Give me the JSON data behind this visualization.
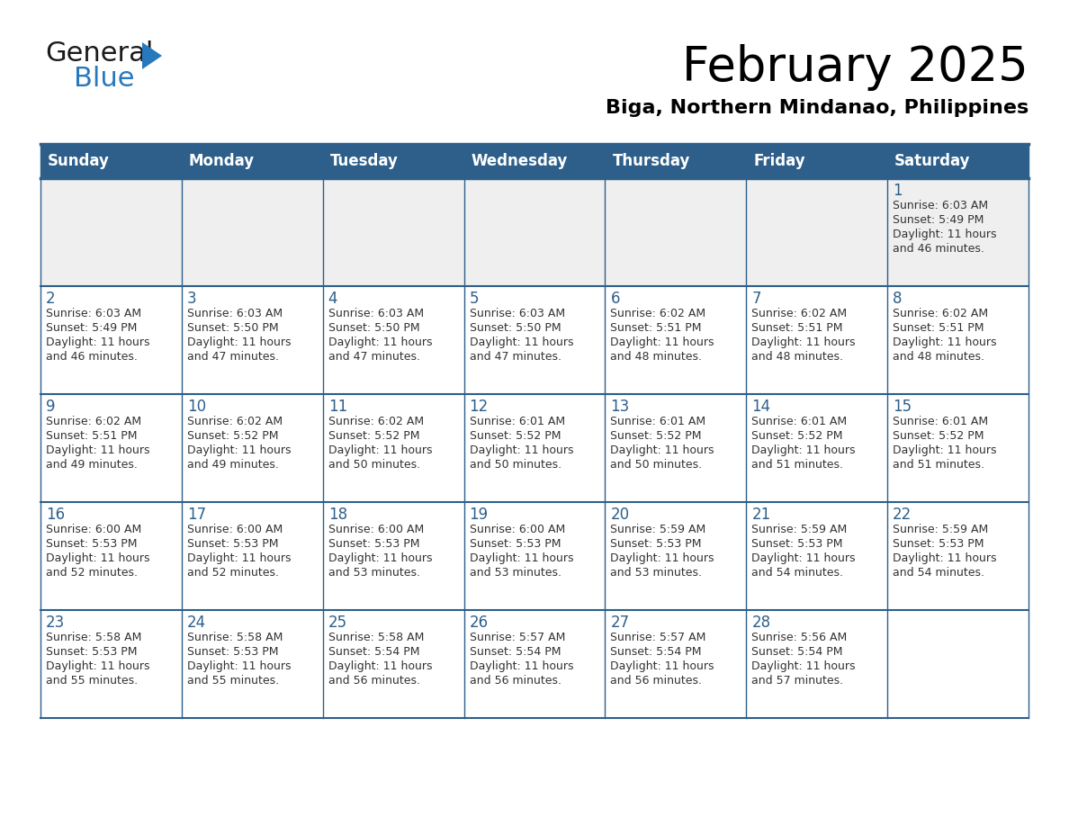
{
  "title": "February 2025",
  "subtitle": "Biga, Northern Mindanao, Philippines",
  "header_bg": "#2D5F8A",
  "header_text_color": "#FFFFFF",
  "day_headers": [
    "Sunday",
    "Monday",
    "Tuesday",
    "Wednesday",
    "Thursday",
    "Friday",
    "Saturday"
  ],
  "row0_bg": "#EFEFEF",
  "grid_line_color": "#2D5F8A",
  "date_color": "#2D5F8A",
  "text_color": "#333333",
  "logo_general_color": "#1a1a1a",
  "logo_blue_color": "#2878BE",
  "calendar": [
    [
      null,
      null,
      null,
      null,
      null,
      null,
      1
    ],
    [
      2,
      3,
      4,
      5,
      6,
      7,
      8
    ],
    [
      9,
      10,
      11,
      12,
      13,
      14,
      15
    ],
    [
      16,
      17,
      18,
      19,
      20,
      21,
      22
    ],
    [
      23,
      24,
      25,
      26,
      27,
      28,
      null
    ]
  ],
  "cell_data": {
    "1": {
      "sunrise": "6:03 AM",
      "sunset": "5:49 PM",
      "daylight": "11 hours",
      "daylight2": "and 46 minutes."
    },
    "2": {
      "sunrise": "6:03 AM",
      "sunset": "5:49 PM",
      "daylight": "11 hours",
      "daylight2": "and 46 minutes."
    },
    "3": {
      "sunrise": "6:03 AM",
      "sunset": "5:50 PM",
      "daylight": "11 hours",
      "daylight2": "and 47 minutes."
    },
    "4": {
      "sunrise": "6:03 AM",
      "sunset": "5:50 PM",
      "daylight": "11 hours",
      "daylight2": "and 47 minutes."
    },
    "5": {
      "sunrise": "6:03 AM",
      "sunset": "5:50 PM",
      "daylight": "11 hours",
      "daylight2": "and 47 minutes."
    },
    "6": {
      "sunrise": "6:02 AM",
      "sunset": "5:51 PM",
      "daylight": "11 hours",
      "daylight2": "and 48 minutes."
    },
    "7": {
      "sunrise": "6:02 AM",
      "sunset": "5:51 PM",
      "daylight": "11 hours",
      "daylight2": "and 48 minutes."
    },
    "8": {
      "sunrise": "6:02 AM",
      "sunset": "5:51 PM",
      "daylight": "11 hours",
      "daylight2": "and 48 minutes."
    },
    "9": {
      "sunrise": "6:02 AM",
      "sunset": "5:51 PM",
      "daylight": "11 hours",
      "daylight2": "and 49 minutes."
    },
    "10": {
      "sunrise": "6:02 AM",
      "sunset": "5:52 PM",
      "daylight": "11 hours",
      "daylight2": "and 49 minutes."
    },
    "11": {
      "sunrise": "6:02 AM",
      "sunset": "5:52 PM",
      "daylight": "11 hours",
      "daylight2": "and 50 minutes."
    },
    "12": {
      "sunrise": "6:01 AM",
      "sunset": "5:52 PM",
      "daylight": "11 hours",
      "daylight2": "and 50 minutes."
    },
    "13": {
      "sunrise": "6:01 AM",
      "sunset": "5:52 PM",
      "daylight": "11 hours",
      "daylight2": "and 50 minutes."
    },
    "14": {
      "sunrise": "6:01 AM",
      "sunset": "5:52 PM",
      "daylight": "11 hours",
      "daylight2": "and 51 minutes."
    },
    "15": {
      "sunrise": "6:01 AM",
      "sunset": "5:52 PM",
      "daylight": "11 hours",
      "daylight2": "and 51 minutes."
    },
    "16": {
      "sunrise": "6:00 AM",
      "sunset": "5:53 PM",
      "daylight": "11 hours",
      "daylight2": "and 52 minutes."
    },
    "17": {
      "sunrise": "6:00 AM",
      "sunset": "5:53 PM",
      "daylight": "11 hours",
      "daylight2": "and 52 minutes."
    },
    "18": {
      "sunrise": "6:00 AM",
      "sunset": "5:53 PM",
      "daylight": "11 hours",
      "daylight2": "and 53 minutes."
    },
    "19": {
      "sunrise": "6:00 AM",
      "sunset": "5:53 PM",
      "daylight": "11 hours",
      "daylight2": "and 53 minutes."
    },
    "20": {
      "sunrise": "5:59 AM",
      "sunset": "5:53 PM",
      "daylight": "11 hours",
      "daylight2": "and 53 minutes."
    },
    "21": {
      "sunrise": "5:59 AM",
      "sunset": "5:53 PM",
      "daylight": "11 hours",
      "daylight2": "and 54 minutes."
    },
    "22": {
      "sunrise": "5:59 AM",
      "sunset": "5:53 PM",
      "daylight": "11 hours",
      "daylight2": "and 54 minutes."
    },
    "23": {
      "sunrise": "5:58 AM",
      "sunset": "5:53 PM",
      "daylight": "11 hours",
      "daylight2": "and 55 minutes."
    },
    "24": {
      "sunrise": "5:58 AM",
      "sunset": "5:53 PM",
      "daylight": "11 hours",
      "daylight2": "and 55 minutes."
    },
    "25": {
      "sunrise": "5:58 AM",
      "sunset": "5:54 PM",
      "daylight": "11 hours",
      "daylight2": "and 56 minutes."
    },
    "26": {
      "sunrise": "5:57 AM",
      "sunset": "5:54 PM",
      "daylight": "11 hours",
      "daylight2": "and 56 minutes."
    },
    "27": {
      "sunrise": "5:57 AM",
      "sunset": "5:54 PM",
      "daylight": "11 hours",
      "daylight2": "and 56 minutes."
    },
    "28": {
      "sunrise": "5:56 AM",
      "sunset": "5:54 PM",
      "daylight": "11 hours",
      "daylight2": "and 57 minutes."
    }
  }
}
